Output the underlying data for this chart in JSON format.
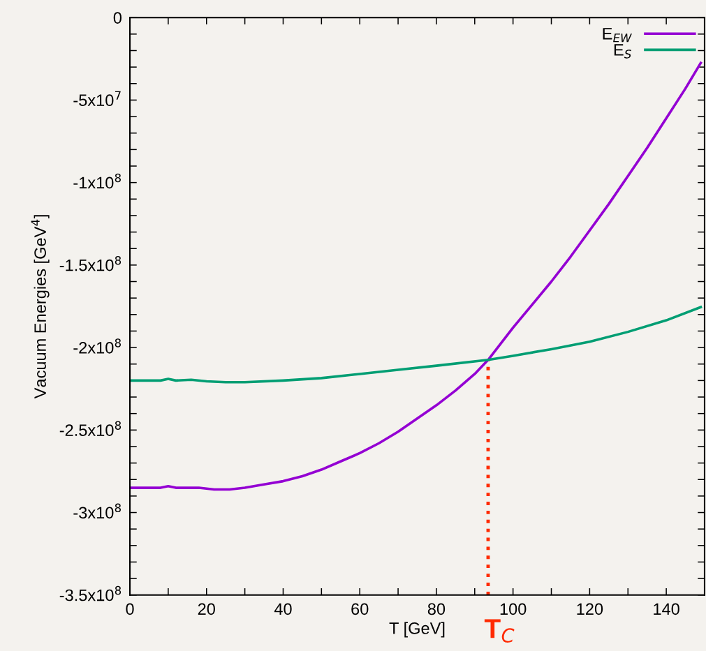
{
  "chart_data": {
    "type": "line",
    "xlabel": "T [GeV]",
    "ylabel": "Vacuum Energies [GeV$^{4}$]",
    "xlim": [
      0,
      150
    ],
    "ylim": [
      -350000000,
      0
    ],
    "xticks": [
      0,
      {
        "value": 10,
        "label": null
      },
      20,
      {
        "value": 30,
        "label": null
      },
      40,
      {
        "value": 50,
        "label": null
      },
      60,
      {
        "value": 70,
        "label": null
      },
      80,
      {
        "value": 90,
        "label": null
      },
      100,
      {
        "value": 110,
        "label": null
      },
      120,
      {
        "value": 130,
        "label": null
      },
      140
    ],
    "yticks": [
      {
        "value": -350000000,
        "label": "-3.5x10$^{8}$"
      },
      {
        "value": -340000000,
        "label": null
      },
      {
        "value": -330000000,
        "label": null
      },
      {
        "value": -320000000,
        "label": null
      },
      {
        "value": -310000000,
        "label": null
      },
      {
        "value": -300000000,
        "label": "-3x10$^{8}$"
      },
      {
        "value": -290000000,
        "label": null
      },
      {
        "value": -280000000,
        "label": null
      },
      {
        "value": -270000000,
        "label": null
      },
      {
        "value": -260000000,
        "label": null
      },
      {
        "value": -250000000,
        "label": "-2.5x10$^{8}$"
      },
      {
        "value": -240000000,
        "label": null
      },
      {
        "value": -230000000,
        "label": null
      },
      {
        "value": -220000000,
        "label": null
      },
      {
        "value": -210000000,
        "label": null
      },
      {
        "value": -200000000,
        "label": "-2x10$^{8}$"
      },
      {
        "value": -190000000,
        "label": null
      },
      {
        "value": -180000000,
        "label": null
      },
      {
        "value": -170000000,
        "label": null
      },
      {
        "value": -160000000,
        "label": null
      },
      {
        "value": -150000000,
        "label": "-1.5x10$^{8}$"
      },
      {
        "value": -140000000,
        "label": null
      },
      {
        "value": -130000000,
        "label": null
      },
      {
        "value": -120000000,
        "label": null
      },
      {
        "value": -110000000,
        "label": null
      },
      {
        "value": -100000000,
        "label": "-1x10$^{8}$"
      },
      {
        "value": -90000000,
        "label": null
      },
      {
        "value": -80000000,
        "label": null
      },
      {
        "value": -70000000,
        "label": null
      },
      {
        "value": -60000000,
        "label": null
      },
      {
        "value": -50000000,
        "label": "-5x10$^{7}$"
      },
      {
        "value": -40000000,
        "label": null
      },
      {
        "value": -30000000,
        "label": null
      },
      {
        "value": -20000000,
        "label": null
      },
      {
        "value": -10000000,
        "label": null
      },
      0
    ],
    "grid": false,
    "legend": "top right",
    "marker": "none",
    "line_style": "solid",
    "series": [
      {
        "name": "E$_{EW}$",
        "color": "#9400d3",
        "x": [
          0,
          8,
          10,
          12,
          18,
          22,
          26,
          30,
          35,
          40,
          45,
          50,
          55,
          60,
          65,
          70,
          75,
          80,
          85,
          90,
          93.5,
          100,
          105,
          110,
          115,
          120,
          125,
          130,
          135,
          140,
          145,
          149
        ],
        "values": [
          -285000000,
          -285000000,
          -284000000,
          -285000000,
          -285000000,
          -286000000,
          -286000000,
          -285000000,
          -283000000,
          -281000000,
          -278000000,
          -274000000,
          -269000000,
          -264000000,
          -258000000,
          -251000000,
          -243000000,
          -235000000,
          -226000000,
          -216000000,
          -207500000,
          -188000000,
          -174000000,
          -160000000,
          -145000000,
          -129000000,
          -113000000,
          -96000000,
          -79000000,
          -61000000,
          -43000000,
          -27500000
        ]
      },
      {
        "name": "E$_{S}$",
        "color": "#009e73",
        "x": [
          0,
          8,
          10,
          12,
          16,
          20,
          25,
          30,
          40,
          50,
          60,
          70,
          80,
          93.5,
          100,
          110,
          120,
          130,
          140,
          149
        ],
        "values": [
          -220000000,
          -220000000,
          -219000000,
          -220000000,
          -219500000,
          -220500000,
          -221000000,
          -221000000,
          -220000000,
          -218500000,
          -216000000,
          -213500000,
          -211000000,
          -207500000,
          -205000000,
          -201000000,
          -196500000,
          -190500000,
          -183500000,
          -175500000
        ]
      }
    ],
    "ref_lines": [
      {
        "axis": "x",
        "value": 93.5,
        "label": "T$_{C}$",
        "color": "#ff2a00",
        "line_style": "dotted"
      }
    ]
  }
}
